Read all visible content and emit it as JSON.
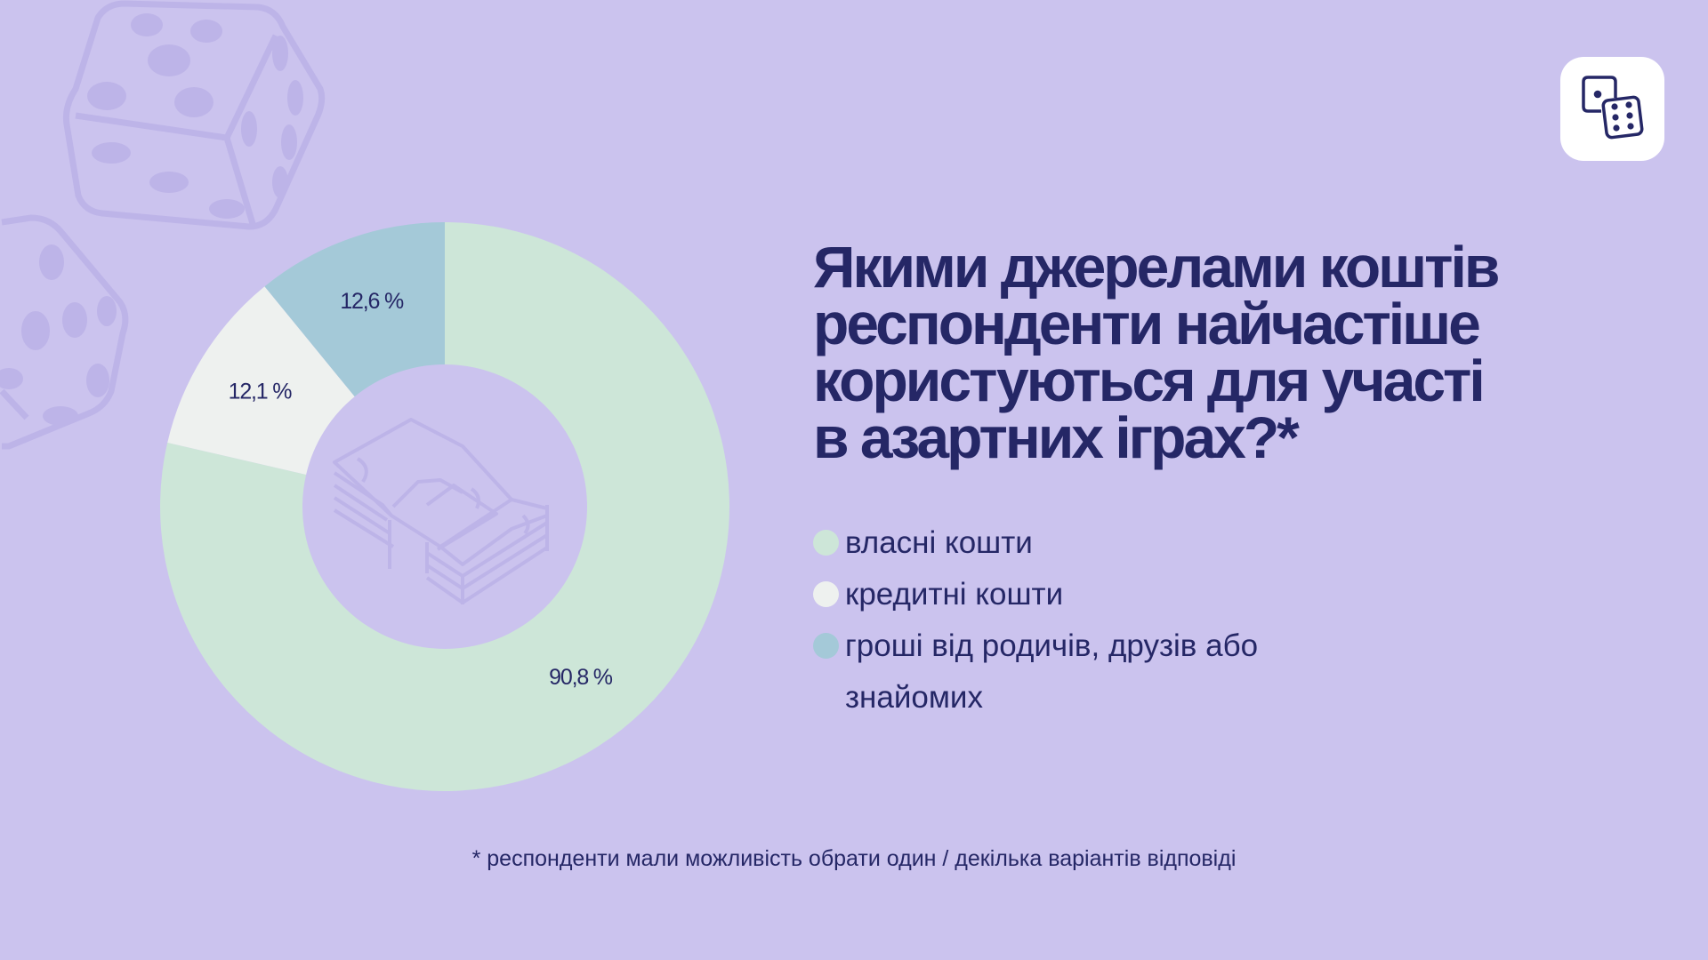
{
  "colors": {
    "background": "#cbc3ee",
    "text": "#252766",
    "decoration": "#bdb4e8",
    "own_funds": "#cde6d8",
    "credit_funds": "#eef1ef",
    "relatives_money": "#a4c9d8"
  },
  "icons": {
    "app_icon": "dice-icon",
    "background_decoration": "dice-icon",
    "donut_center": "money-stack-icon"
  },
  "title": {
    "lines": [
      "Якими джерелами коштів",
      "респонденти найчастіше",
      "користуються для участі",
      "в азартних іграх?*"
    ]
  },
  "legend": [
    {
      "label": "власні кошти",
      "color": "#cde6d8"
    },
    {
      "label": "кредитні кошти",
      "color": "#eef1ef"
    },
    {
      "label": "гроші від родичів, друзів або знайомих",
      "color": "#a4c9d8"
    }
  ],
  "chart_data": {
    "type": "pie",
    "donut": true,
    "categories": [
      "власні кошти",
      "кредитні кошти",
      "гроші від родичів, друзів або знайомих"
    ],
    "values": [
      90.8,
      12.1,
      12.6
    ],
    "data_labels": [
      "90,8 %",
      "12,1 %",
      "12,6 %"
    ],
    "colors": [
      "#cde6d8",
      "#eef1ef",
      "#a4c9d8"
    ],
    "start": "12 o'clock",
    "direction": "clockwise",
    "legend_placement": "right"
  },
  "footnote": "* респонденти мали можливість обрати один / декілька варіантів відповіді"
}
